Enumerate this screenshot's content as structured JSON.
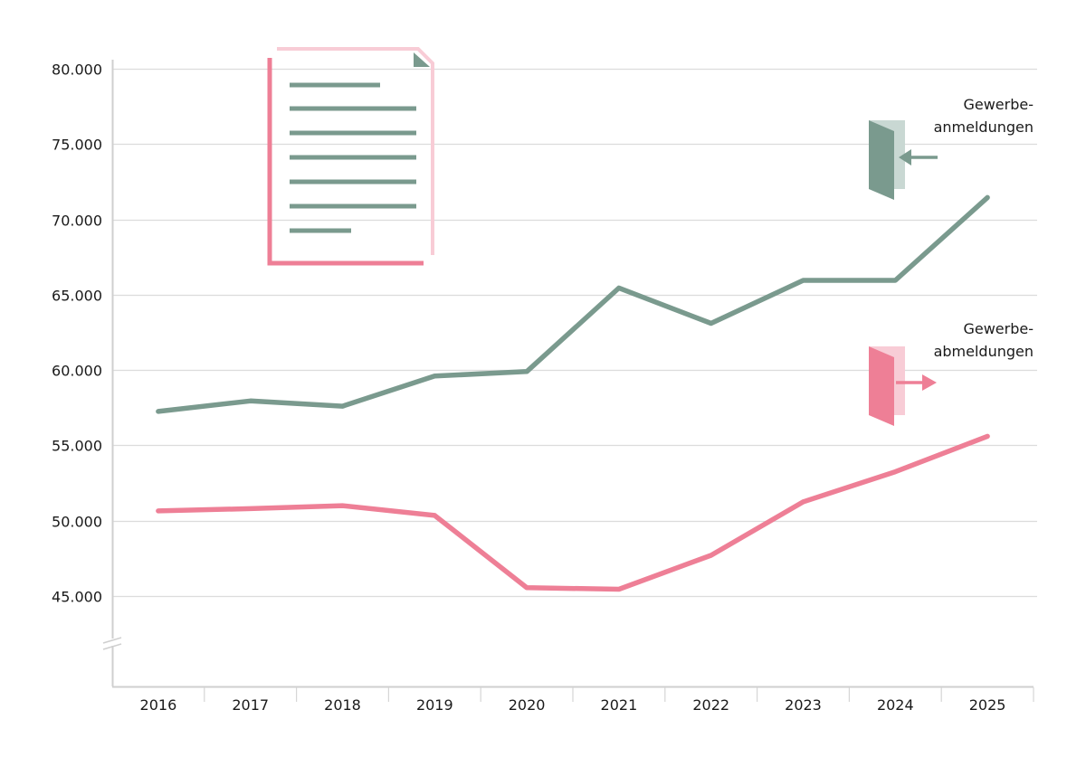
{
  "chart_data": {
    "type": "line",
    "title": "",
    "xlabel": "",
    "ylabel": "",
    "categories": [
      "2016",
      "2017",
      "2018",
      "2019",
      "2020",
      "2021",
      "2022",
      "2023",
      "2024",
      "2025"
    ],
    "ylim": [
      40000,
      80000
    ],
    "axis_break": true,
    "y_ticks": [
      45000,
      50000,
      55000,
      60000,
      65000,
      70000,
      75000,
      80000
    ],
    "y_tick_labels": [
      "45.000",
      "50.000",
      "55.000",
      "60.000",
      "65.000",
      "70.000",
      "75.000",
      "80.000"
    ],
    "grid": "horizontal",
    "series": [
      {
        "name": "Gewerbe-anmeldungen",
        "label_lines": [
          "Gewerbe-",
          "anmeldungen"
        ],
        "color": "#7a9a8e",
        "light_color": "#c9d8d3",
        "values": [
          57250,
          57950,
          57600,
          59600,
          59900,
          65450,
          63100,
          65950,
          65950,
          71450
        ]
      },
      {
        "name": "Gewerbe-abmeldungen",
        "label_lines": [
          "Gewerbe-",
          "abmeldungen"
        ],
        "color": "#ee7f96",
        "light_color": "#f8ccd6",
        "values": [
          50650,
          50800,
          51000,
          50350,
          45550,
          45450,
          47700,
          51250,
          53250,
          55600
        ]
      }
    ]
  },
  "icons": {
    "document": "document-icon",
    "register": "door-arrow-in-icon",
    "deregister": "door-arrow-out-icon"
  }
}
